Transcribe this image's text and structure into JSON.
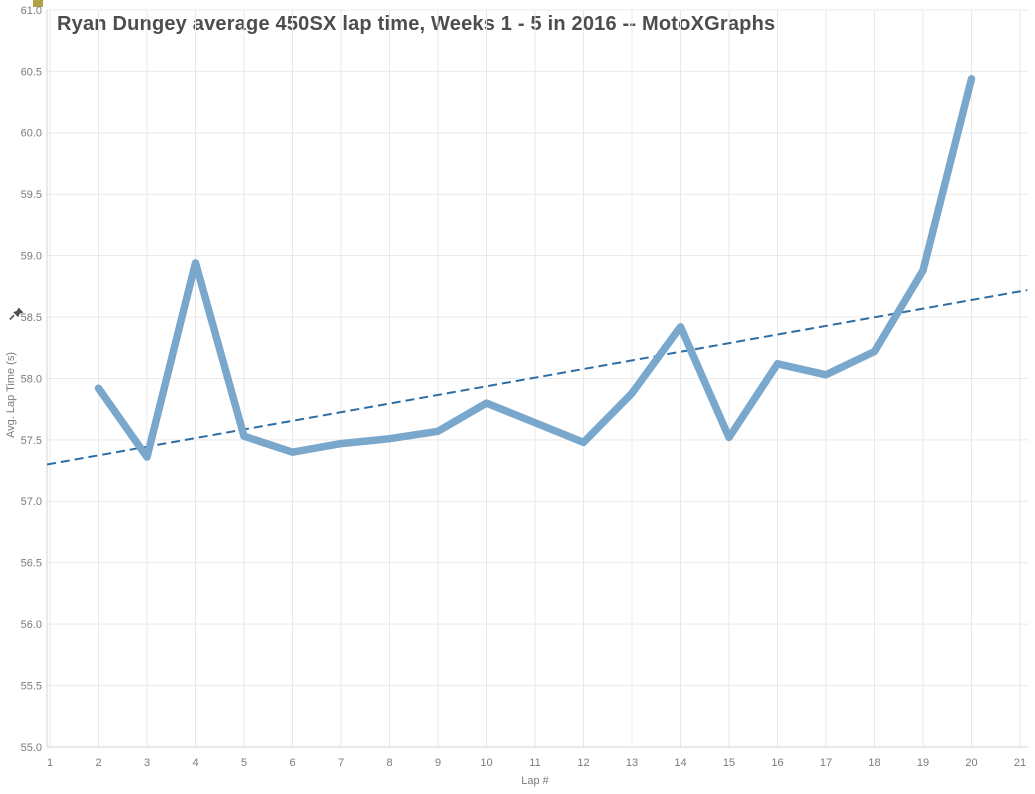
{
  "page": {
    "app": "tableau-style-chart-view"
  },
  "colors": {
    "series_line": "#7aa7cc",
    "trend_line": "#2e6da4",
    "gridline": "#e9e9e9",
    "axis_line": "#d6d6d6",
    "tick_text": "#7b7b7b",
    "title_text": "#4d4d4d",
    "corner_mark": "#b2a244",
    "pin_icon": "#4a4f58"
  },
  "chart_data": {
    "type": "line",
    "title": "Ryan Dungey average 450SX lap time, Weeks 1 - 5 in 2016 -- MotoXGraphs",
    "xlabel": "Lap #",
    "ylabel": "Avg. Lap Time (s)",
    "xlim": [
      1,
      21
    ],
    "ylim": [
      55.0,
      61.0
    ],
    "x_ticks": [
      1,
      2,
      3,
      4,
      5,
      6,
      7,
      8,
      9,
      10,
      11,
      12,
      13,
      14,
      15,
      16,
      17,
      18,
      19,
      20,
      21
    ],
    "y_ticks": [
      55.0,
      55.5,
      56.0,
      56.5,
      57.0,
      57.5,
      58.0,
      58.5,
      59.0,
      59.5,
      60.0,
      60.5,
      61.0
    ],
    "grid": true,
    "legend_position": "none",
    "series": [
      {
        "name": "Avg. Lap Time (s)",
        "x": [
          2,
          3,
          4,
          5,
          6,
          7,
          8,
          9,
          10,
          11,
          12,
          13,
          14,
          15,
          16,
          17,
          18,
          19,
          20
        ],
        "y": [
          57.92,
          57.36,
          58.94,
          57.53,
          57.4,
          57.47,
          57.51,
          57.57,
          57.8,
          57.64,
          57.48,
          57.88,
          58.42,
          57.52,
          58.12,
          58.03,
          58.22,
          58.88,
          60.44
        ]
      }
    ],
    "trendline": {
      "type": "linear",
      "dashed": true,
      "x": [
        0.94,
        21.15
      ],
      "y": [
        57.3,
        58.72
      ]
    }
  }
}
